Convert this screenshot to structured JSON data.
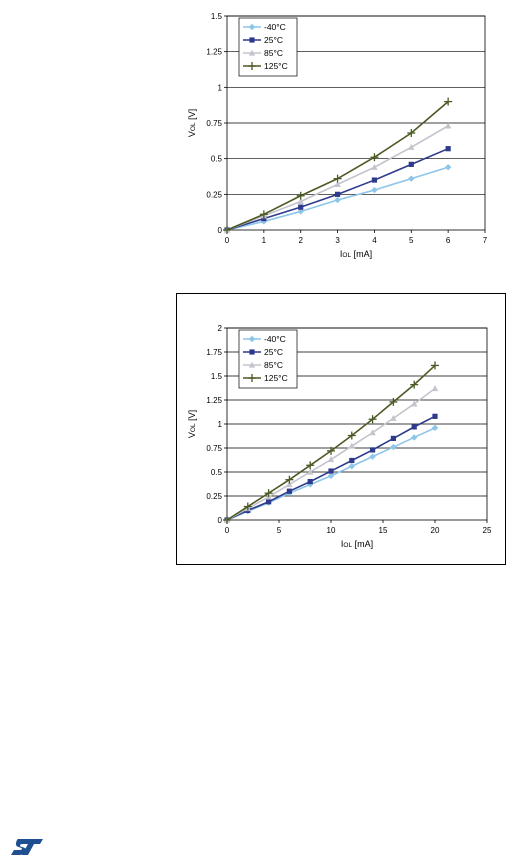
{
  "chart_data": [
    {
      "type": "line",
      "xlabel": "I",
      "xlabel_sub": "OL",
      "xlabel_unit": "[mA]",
      "ylabel": "V",
      "ylabel_sub": "OL",
      "ylabel_unit": "[V]",
      "xlim": [
        0,
        7
      ],
      "ylim": [
        0,
        1.5
      ],
      "xticks": [
        "0",
        "1",
        "2",
        "3",
        "4",
        "5",
        "6",
        "7"
      ],
      "yticks": [
        "0",
        "0.25",
        "0.5",
        "0.75",
        "1",
        "1.25",
        "1.5"
      ],
      "grid": "horizontal",
      "legend_position": "top-left",
      "series": [
        {
          "name": "-40°C",
          "color": "#8ec6e8",
          "marker": "diamond",
          "x": [
            0,
            1,
            2,
            3,
            4,
            5,
            6
          ],
          "y": [
            0,
            0.06,
            0.13,
            0.21,
            0.28,
            0.36,
            0.44
          ]
        },
        {
          "name": "25°C",
          "color": "#2e3a8c",
          "marker": "square",
          "x": [
            0,
            1,
            2,
            3,
            4,
            5,
            6
          ],
          "y": [
            0,
            0.08,
            0.16,
            0.25,
            0.35,
            0.46,
            0.57
          ]
        },
        {
          "name": "85°C",
          "color": "#c4c4cc",
          "marker": "triangle",
          "x": [
            0,
            1,
            2,
            3,
            4,
            5,
            6
          ],
          "y": [
            0,
            0.1,
            0.2,
            0.32,
            0.44,
            0.58,
            0.73
          ]
        },
        {
          "name": "125°C",
          "color": "#4b5a24",
          "marker": "plus",
          "x": [
            0,
            1,
            2,
            3,
            4,
            5,
            6
          ],
          "y": [
            0,
            0.11,
            0.24,
            0.36,
            0.51,
            0.68,
            0.9
          ]
        }
      ]
    },
    {
      "type": "line",
      "xlabel": "I",
      "xlabel_sub": "OL",
      "xlabel_unit": "[mA]",
      "ylabel": "V",
      "ylabel_sub": "OL",
      "ylabel_unit": "[V]",
      "xlim": [
        0,
        25
      ],
      "ylim": [
        0,
        2
      ],
      "xticks": [
        "0",
        "5",
        "10",
        "15",
        "20",
        "25"
      ],
      "yticks": [
        "0",
        "0.25",
        "0.5",
        "0.75",
        "1",
        "1.25",
        "1.5",
        "1.75",
        "2"
      ],
      "grid": "horizontal",
      "legend_position": "top-left",
      "series": [
        {
          "name": "-40°C",
          "color": "#8ec6e8",
          "marker": "diamond",
          "x": [
            0,
            2,
            4,
            6,
            8,
            10,
            12,
            14,
            16,
            18,
            20
          ],
          "y": [
            0,
            0.09,
            0.18,
            0.28,
            0.37,
            0.46,
            0.56,
            0.66,
            0.76,
            0.86,
            0.96
          ]
        },
        {
          "name": "25°C",
          "color": "#2e3a8c",
          "marker": "square",
          "x": [
            0,
            2,
            4,
            6,
            8,
            10,
            12,
            14,
            16,
            18,
            20
          ],
          "y": [
            0,
            0.1,
            0.19,
            0.3,
            0.4,
            0.51,
            0.62,
            0.73,
            0.85,
            0.97,
            1.08
          ]
        },
        {
          "name": "85°C",
          "color": "#c4c4cc",
          "marker": "triangle",
          "x": [
            0,
            2,
            4,
            6,
            8,
            10,
            12,
            14,
            16,
            18,
            20
          ],
          "y": [
            0,
            0.12,
            0.24,
            0.37,
            0.5,
            0.63,
            0.77,
            0.91,
            1.06,
            1.21,
            1.37
          ]
        },
        {
          "name": "125°C",
          "color": "#4b5a24",
          "marker": "plus",
          "x": [
            0,
            2,
            4,
            6,
            8,
            10,
            12,
            14,
            16,
            18,
            20
          ],
          "y": [
            0,
            0.14,
            0.28,
            0.42,
            0.57,
            0.72,
            0.88,
            1.05,
            1.23,
            1.41,
            1.61
          ]
        }
      ]
    }
  ],
  "logo": {
    "text": "ST",
    "color": "#1d4f91"
  }
}
